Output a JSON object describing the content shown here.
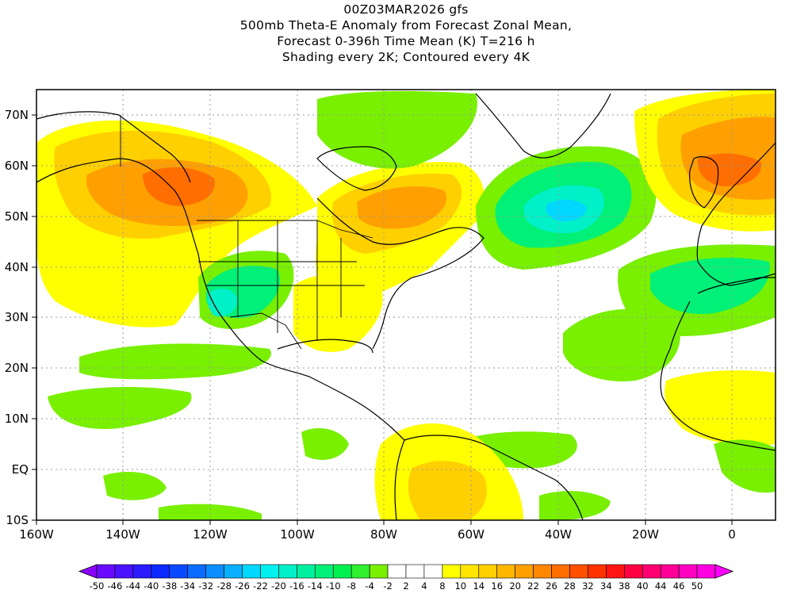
{
  "title": {
    "line1": "00Z03MAR2026 gfs",
    "line2": "500mb Theta-E Anomaly from Forecast Zonal Mean,",
    "line3": "Forecast 0-396h Time Mean (K) T=216 h",
    "line4": "Shading every 2K; Contoured every 4K"
  },
  "map": {
    "lon_range": [
      -160,
      10
    ],
    "lat_range": [
      -10,
      75
    ],
    "lat_ticks": [
      {
        "lat": 70,
        "label": "70N"
      },
      {
        "lat": 60,
        "label": "60N"
      },
      {
        "lat": 50,
        "label": "50N"
      },
      {
        "lat": 40,
        "label": "40N"
      },
      {
        "lat": 30,
        "label": "30N"
      },
      {
        "lat": 20,
        "label": "20N"
      },
      {
        "lat": 10,
        "label": "10N"
      },
      {
        "lat": 0,
        "label": "EQ"
      },
      {
        "lat": -10,
        "label": "10S"
      }
    ],
    "lon_ticks": [
      {
        "lon": -160,
        "label": "160W"
      },
      {
        "lon": -140,
        "label": "140W"
      },
      {
        "lon": -120,
        "label": "120W"
      },
      {
        "lon": -100,
        "label": "100W"
      },
      {
        "lon": -80,
        "label": "80W"
      },
      {
        "lon": -60,
        "label": "60W"
      },
      {
        "lon": -40,
        "label": "40W"
      },
      {
        "lon": -20,
        "label": "20W"
      },
      {
        "lon": 0,
        "label": "0"
      }
    ],
    "grid": true
  },
  "colorbar": {
    "colors": [
      "#8a00ff",
      "#6a0aff",
      "#4a12ff",
      "#2a1cff",
      "#0a28ff",
      "#0a4aff",
      "#0a6cff",
      "#0a8eff",
      "#08b0ff",
      "#00d8ff",
      "#00f0f0",
      "#00f0c8",
      "#00f0a0",
      "#00f078",
      "#00f050",
      "#30f030",
      "#78f000",
      "#ffffff",
      "#ffffff",
      "#ffffff",
      "#ffff00",
      "#ffe600",
      "#ffd000",
      "#ffb800",
      "#ffa000",
      "#ff8800",
      "#ff6e00",
      "#ff5000",
      "#ff3200",
      "#ff1414",
      "#ff0040",
      "#ff0070",
      "#ff0098",
      "#ff00c0",
      "#ff00e0",
      "#ff00ff"
    ],
    "labels": [
      "-50",
      "-46",
      "-44",
      "-40",
      "-38",
      "-34",
      "-32",
      "-28",
      "-26",
      "-22",
      "-20",
      "-16",
      "-14",
      "-10",
      "-8",
      "-4",
      "-2",
      "2",
      "4",
      "8",
      "10",
      "14",
      "16",
      "20",
      "22",
      "26",
      "28",
      "32",
      "34",
      "38",
      "40",
      "44",
      "46",
      "50"
    ]
  },
  "anomaly_regions": [
    {
      "name": "pacific-nw-warm",
      "color": "#ffff00",
      "value": 4
    },
    {
      "name": "pacific-nw-warm-core",
      "color": "#ffa000",
      "value": 16
    },
    {
      "name": "pacific-nw-hot-core",
      "color": "#ff6e00",
      "value": 22
    },
    {
      "name": "eastern-canada-warm",
      "color": "#ffd000",
      "value": 10
    },
    {
      "name": "eastern-canada-warm-core",
      "color": "#ffa000",
      "value": 16
    },
    {
      "name": "north-atlantic-cold",
      "color": "#00f078",
      "value": -14
    },
    {
      "name": "north-atlantic-cold-core",
      "color": "#00d8ff",
      "value": -22
    },
    {
      "name": "europe-warm",
      "color": "#ffa000",
      "value": 16
    },
    {
      "name": "europe-warm-core",
      "color": "#ff6e00",
      "value": 22
    },
    {
      "name": "southwest-us-cold",
      "color": "#00f078",
      "value": -14
    },
    {
      "name": "southwest-us-cold-core",
      "color": "#00f0c8",
      "value": -20
    },
    {
      "name": "iberia-nw-africa-cold",
      "color": "#00f078",
      "value": -14
    },
    {
      "name": "tropical-pacific-cool",
      "color": "#78f000",
      "value": -8
    },
    {
      "name": "south-america-warm",
      "color": "#ffff00",
      "value": 8
    },
    {
      "name": "greenland-arctic-cool",
      "color": "#78f000",
      "value": -8
    }
  ]
}
